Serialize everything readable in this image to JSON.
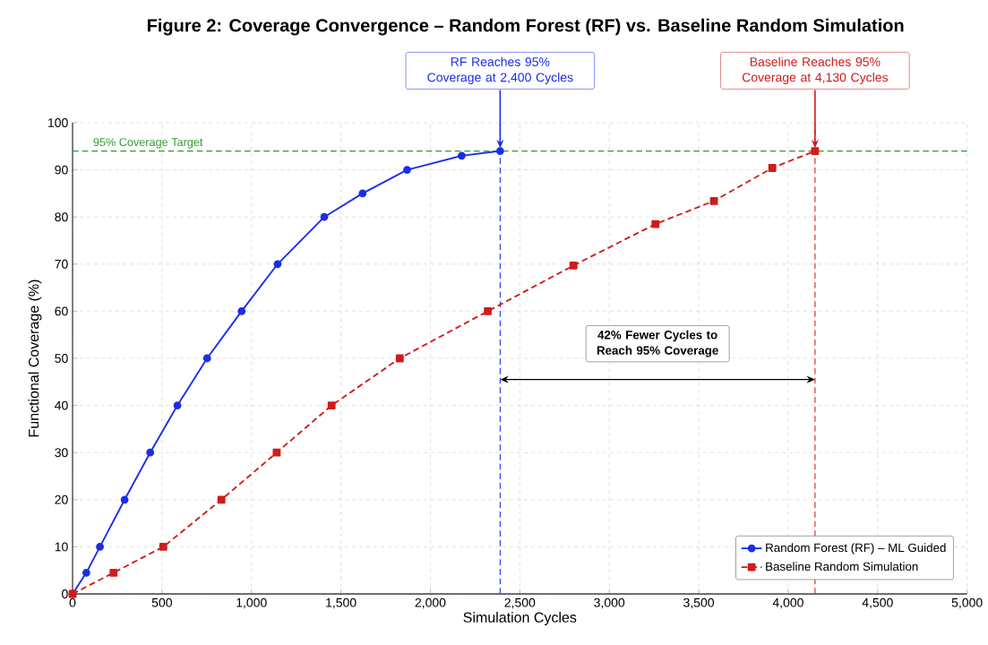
{
  "chart_data": {
    "type": "line",
    "title": "Figure 2: Coverage Convergence – Random Forest (RF) vs. Baseline Random Simulation",
    "xlabel": "Simulation Cycles",
    "ylabel": "Functional Coverage (%)",
    "series": [
      {
        "name": "Random Forest (RF) – ML Guided",
        "color": "#1a2ee6",
        "marker": "circle",
        "line_style": "solid",
        "x": [
          0,
          77,
          153,
          291,
          434,
          586,
          752,
          945,
          1146,
          1407,
          1621,
          1870,
          2175,
          2390
        ],
        "values": [
          0,
          4.5,
          10,
          20,
          30,
          40,
          50,
          60,
          70,
          80,
          85,
          90,
          93,
          94
        ]
      },
      {
        "name": "Baseline Random Simulation",
        "color": "#d01c1c",
        "marker": "square",
        "line_style": "dashed",
        "x": [
          0,
          229,
          507,
          832,
          1141,
          1448,
          1829,
          2321,
          2800,
          3258,
          3585,
          3911,
          4150
        ],
        "values": [
          0,
          4.5,
          10,
          20,
          30,
          40,
          50,
          60,
          69.7,
          78.5,
          83.4,
          90.4,
          94
        ]
      }
    ],
    "xlim": [
      0,
      5000
    ],
    "ylim": [
      0,
      100
    ],
    "xticks": [
      0,
      500,
      {
        "value": 1000,
        "label": "1,000"
      },
      {
        "value": 1500,
        "label": "1,500"
      },
      {
        "value": 2000,
        "label": "2,000"
      },
      {
        "value": 2500,
        "label": "2,500"
      },
      {
        "value": 3000,
        "label": "3,000"
      },
      {
        "value": 3500,
        "label": "3,500"
      },
      {
        "value": 4000,
        "label": "4,000"
      },
      {
        "value": 4500,
        "label": "4,500"
      },
      {
        "value": 5000,
        "label": "5,000"
      }
    ],
    "yticks": [
      0,
      10,
      20,
      30,
      40,
      50,
      60,
      70,
      80,
      90,
      100
    ],
    "ref_lines": [
      {
        "axis": "y",
        "value": 94,
        "label": "95% Coverage Target",
        "color": "#2e9a2e",
        "line_style": "dashed"
      },
      {
        "axis": "x",
        "value": 2390,
        "color": "#1a2ee6",
        "line_style": "dashed"
      },
      {
        "axis": "x",
        "value": 4150,
        "color": "#d01c1c",
        "line_style": "dashed"
      }
    ],
    "annotations": [
      {
        "text": "RF Reaches 95% Coverage at 2,400 Cycles",
        "x": 2390,
        "y": 94
      },
      {
        "text": "Baseline Reaches 95% Coverage at 4,130 Cycles",
        "x": 4150,
        "y": 94
      },
      "42% Fewer Cycles to Reach 95% Coverage"
    ],
    "grid": true,
    "legend": "bottom right"
  }
}
